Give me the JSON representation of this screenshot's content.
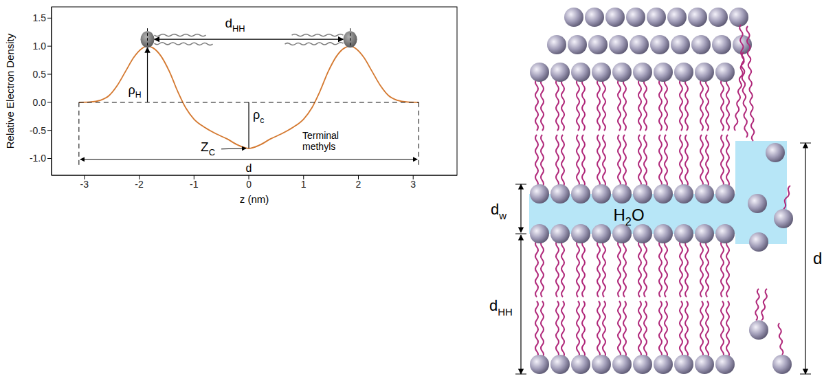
{
  "chart_data": {
    "type": "line",
    "xlabel": "z (nm)",
    "ylabel": "Relative Electron Density",
    "x": [
      -3.1,
      -2.9,
      -2.7,
      -2.55,
      -2.4,
      -2.25,
      -2.1,
      -1.95,
      -1.85,
      -1.75,
      -1.6,
      -1.45,
      -1.3,
      -1.15,
      -1.0,
      -0.8,
      -0.6,
      -0.4,
      -0.2,
      0,
      0.2,
      0.4,
      0.6,
      0.8,
      1.0,
      1.15,
      1.3,
      1.45,
      1.6,
      1.75,
      1.85,
      1.95,
      2.1,
      2.25,
      2.4,
      2.55,
      2.7,
      2.9,
      3.1
    ],
    "values": [
      0,
      0.005,
      0.04,
      0.12,
      0.3,
      0.55,
      0.8,
      0.96,
      1.0,
      0.97,
      0.82,
      0.55,
      0.2,
      -0.1,
      -0.3,
      -0.45,
      -0.56,
      -0.65,
      -0.76,
      -0.82,
      -0.76,
      -0.65,
      -0.56,
      -0.45,
      -0.3,
      -0.1,
      0.2,
      0.55,
      0.82,
      0.97,
      1.0,
      0.96,
      0.8,
      0.55,
      0.3,
      0.12,
      0.04,
      0.005,
      0
    ],
    "color": "#d4782f",
    "xlim": [
      -3.6,
      3.8
    ],
    "ylim": [
      -1.3,
      1.7
    ],
    "xticks": [
      -3,
      -2,
      -1,
      0,
      1,
      2,
      3
    ],
    "yticks": [
      {
        "value": -1,
        "label": "-1.0"
      },
      -0.5,
      {
        "value": 0,
        "label": "0.0"
      },
      0.5,
      {
        "value": 1,
        "label": "1.0"
      },
      1.5
    ],
    "grid": false,
    "annotations": {
      "d_HH": {
        "text": "d",
        "sub": "HH"
      },
      "rho_H": {
        "text": "ρ",
        "sub": "H"
      },
      "rho_c": {
        "text": "ρ",
        "sub": "c"
      },
      "Z_C": {
        "text": "Z",
        "sub": "C"
      },
      "methyls": {
        "text": "Terminal methyls"
      },
      "d": {
        "text": "d"
      }
    }
  },
  "diagram": {
    "labels": {
      "water": {
        "text": "H",
        "sub": "2",
        "tail": "O"
      },
      "d_w": {
        "text": "d",
        "sub": "w"
      },
      "d_HH": {
        "text": "d",
        "sub": "HH"
      },
      "d": {
        "text": "d"
      }
    }
  }
}
